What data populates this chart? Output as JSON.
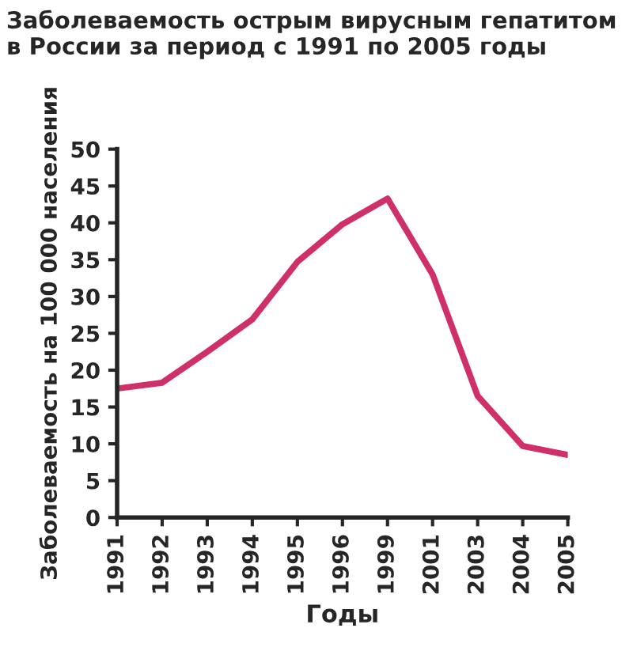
{
  "chart_data": {
    "type": "line",
    "title": "Заболеваемость острым вирусным гепатитом\nв России за период с 1991 по 2005 годы",
    "xlabel": "Годы",
    "ylabel": "Заболеваемость на 100 000 населения",
    "categories": [
      "1991",
      "1992",
      "1993",
      "1994",
      "1995",
      "1996",
      "1999",
      "2001",
      "2003",
      "2004",
      "2005"
    ],
    "series": [
      {
        "color": "#d0306a",
        "values": [
          17.5,
          18.3,
          22.5,
          26.9,
          34.7,
          39.8,
          43.3,
          33.0,
          16.5,
          9.7,
          8.5
        ]
      }
    ],
    "ylim": [
      0,
      50
    ],
    "yticks": [
      0,
      5,
      10,
      15,
      20,
      25,
      30,
      35,
      40,
      45,
      50
    ],
    "grid": false,
    "legend": false,
    "marker": "none",
    "line_style": "solid"
  }
}
